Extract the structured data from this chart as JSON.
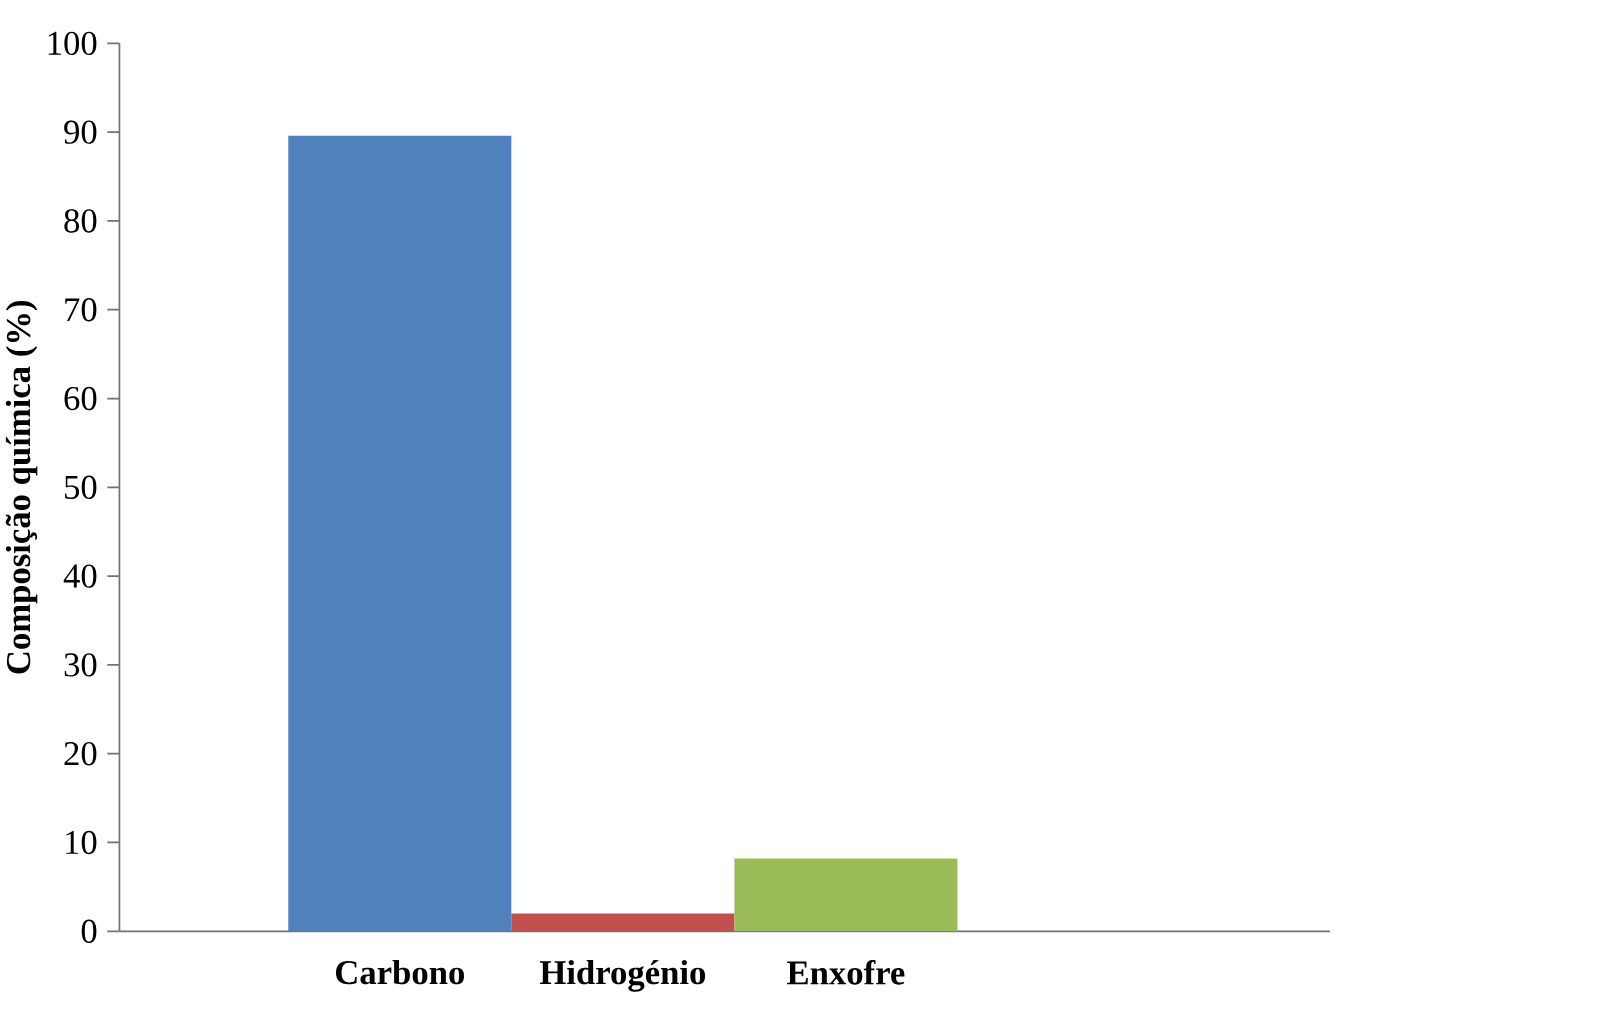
{
  "chart_data": {
    "type": "bar",
    "ylabel": "Composição química (%)",
    "categories": [
      "Carbono",
      "Hidrogénio",
      "Enxofre"
    ],
    "values": [
      89.6,
      2.0,
      8.2
    ],
    "colors": [
      "#4f81bd",
      "#c0504d",
      "#9bbb59"
    ],
    "ylim": [
      0,
      100
    ],
    "yticks": [
      0,
      10,
      20,
      30,
      40,
      50,
      60,
      70,
      80,
      90,
      100
    ]
  }
}
